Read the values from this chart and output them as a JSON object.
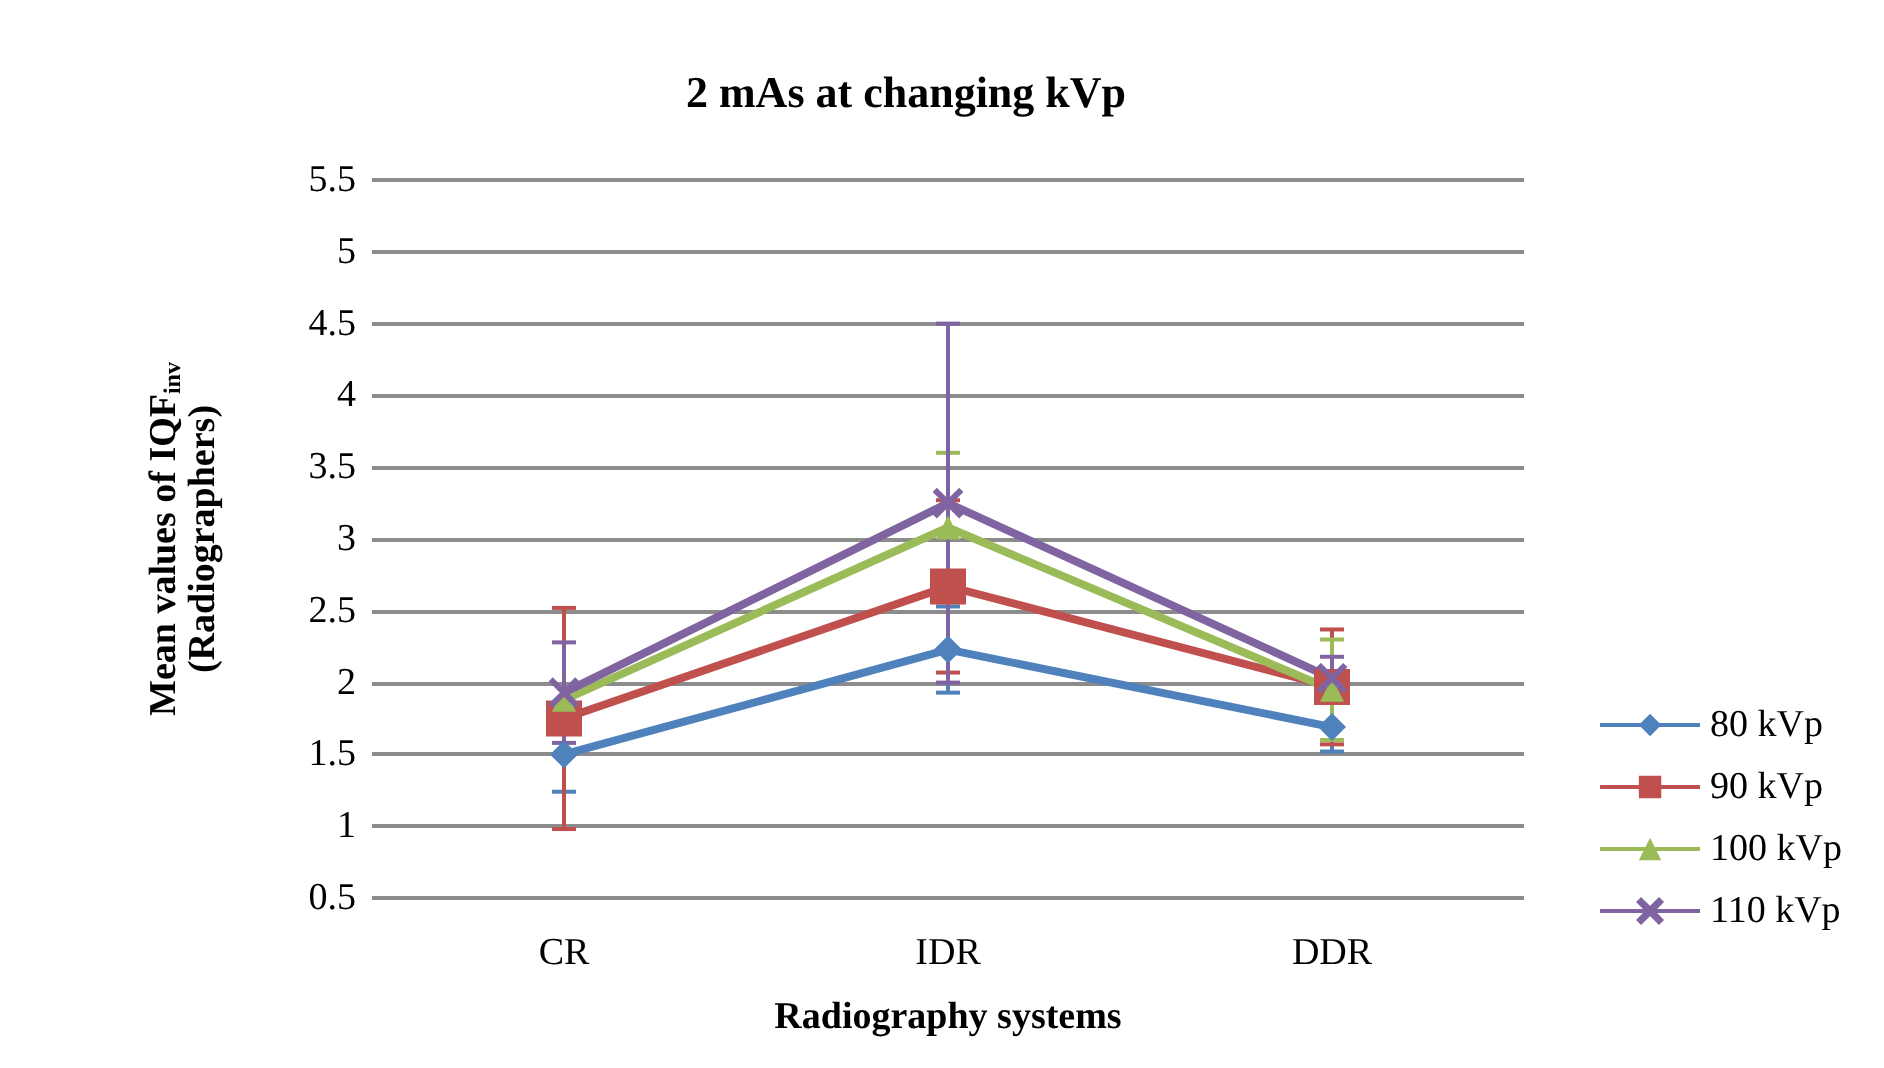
{
  "chart_data": {
    "type": "line",
    "title": "2 mAs at changing kVp",
    "xlabel": "Radiography systems",
    "ylabel": "Mean values of IQF$_{inv}$\n(Radiographers)",
    "categories": [
      "CR",
      "IDR",
      "DDR"
    ],
    "series": [
      {
        "name": "80 kVp",
        "color": "#4f81bd",
        "marker": "diamond",
        "values": [
          1.5,
          2.23,
          1.69
        ],
        "errors": [
          0.26,
          0.3,
          0.17
        ]
      },
      {
        "name": "90 kVp",
        "color": "#c0504d",
        "marker": "square",
        "values": [
          1.75,
          2.67,
          1.97
        ],
        "errors": [
          0.77,
          0.6,
          0.4
        ]
      },
      {
        "name": "100 kVp",
        "color": "#9bbb59",
        "marker": "triangle",
        "values": [
          1.88,
          3.08,
          1.95
        ],
        "errors": [
          null,
          0.52,
          0.35
        ]
      },
      {
        "name": "110 kVp",
        "color": "#8064a2",
        "marker": "cross",
        "values": [
          1.93,
          3.25,
          2.03
        ],
        "errors": [
          0.35,
          1.25,
          0.15
        ]
      }
    ],
    "ylim": [
      0.5,
      5.5
    ],
    "yticks": [
      0.5,
      1,
      1.5,
      2,
      2.5,
      3,
      3.5,
      4,
      4.5,
      5,
      5.5
    ],
    "grid": "y",
    "legend": "right"
  }
}
